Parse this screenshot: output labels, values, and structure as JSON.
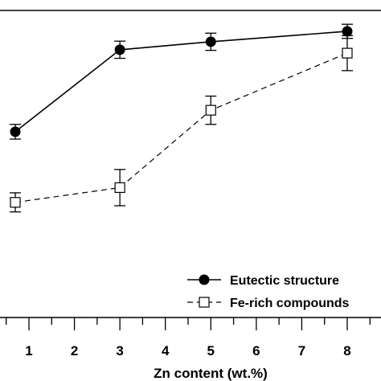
{
  "chart_data": {
    "type": "line",
    "title": "",
    "xlabel": "Zn content (wt.%)",
    "ylabel": "",
    "x_ticks": [
      1,
      2,
      3,
      4,
      5,
      6,
      7,
      8
    ],
    "xlim": [
      0.3,
      8.8
    ],
    "ylim": [
      0,
      100
    ],
    "grid": false,
    "legend_position": "bottom-right",
    "series": [
      {
        "name": "Eutectic structure",
        "marker": "filled-circle",
        "line_style": "solid",
        "x": [
          0.7,
          3,
          5,
          8
        ],
        "y": [
          60.5,
          87.2,
          89.8,
          93.2
        ],
        "err": [
          2.4,
          2.8,
          2.8,
          2.3
        ]
      },
      {
        "name": "Fe-rich compounds",
        "marker": "open-square",
        "line_style": "dashed",
        "x": [
          0.7,
          3,
          5,
          8
        ],
        "y": [
          37.5,
          42.3,
          67.5,
          86.1
        ],
        "err": [
          3.1,
          5.9,
          4.6,
          5.7
        ]
      }
    ]
  }
}
